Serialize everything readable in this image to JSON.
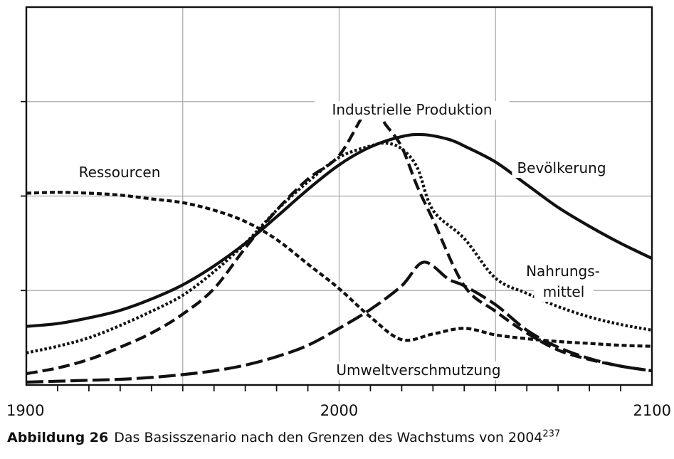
{
  "chart_data": {
    "type": "line",
    "title": "",
    "xlabel": "",
    "ylabel": "",
    "xlim": [
      1900,
      2100
    ],
    "ylim": [
      0,
      4
    ],
    "x_ticks": [
      1900,
      2000,
      2100
    ],
    "grid": true,
    "series": [
      {
        "name": "Bevölkerung",
        "style": "solid",
        "x": [
          1900,
          1910,
          1920,
          1930,
          1940,
          1950,
          1960,
          1970,
          1980,
          1990,
          2000,
          2010,
          2020,
          2027,
          2035,
          2040,
          2050,
          2060,
          2070,
          2080,
          2090,
          2100
        ],
        "y": [
          0.62,
          0.65,
          0.71,
          0.79,
          0.91,
          1.06,
          1.26,
          1.5,
          1.78,
          2.07,
          2.33,
          2.52,
          2.63,
          2.65,
          2.6,
          2.53,
          2.36,
          2.12,
          1.88,
          1.68,
          1.5,
          1.34
        ]
      },
      {
        "name": "Industrielle Produktion",
        "style": "dashed",
        "x": [
          1900,
          1910,
          1920,
          1930,
          1940,
          1950,
          1960,
          1970,
          1980,
          1990,
          2000,
          2010,
          2015,
          2020,
          2025,
          2030,
          2040,
          2050,
          2060,
          2070,
          2080,
          2090,
          2100
        ],
        "y": [
          0.12,
          0.18,
          0.27,
          0.4,
          0.55,
          0.75,
          1.02,
          1.45,
          1.85,
          2.18,
          2.43,
          2.95,
          2.75,
          2.52,
          2.1,
          1.75,
          1.05,
          0.78,
          0.55,
          0.37,
          0.27,
          0.2,
          0.15
        ]
      },
      {
        "name": "Nahrungsmittel",
        "style": "dotted",
        "x": [
          1900,
          1910,
          1920,
          1930,
          1940,
          1950,
          1960,
          1970,
          1980,
          1990,
          2000,
          2010,
          2015,
          2020,
          2025,
          2030,
          2040,
          2050,
          2060,
          2070,
          2080,
          2090,
          2100
        ],
        "y": [
          0.34,
          0.41,
          0.5,
          0.63,
          0.78,
          0.95,
          1.2,
          1.5,
          1.85,
          2.15,
          2.41,
          2.53,
          2.56,
          2.5,
          2.3,
          1.85,
          1.55,
          1.13,
          0.97,
          0.83,
          0.72,
          0.64,
          0.58
        ]
      },
      {
        "name": "Ressourcen",
        "style": "short-dashed",
        "x": [
          1900,
          1910,
          1920,
          1930,
          1940,
          1950,
          1960,
          1970,
          1980,
          1990,
          2000,
          2010,
          2020,
          2030,
          2040,
          2050,
          2060,
          2070,
          2080,
          2090,
          2100
        ],
        "y": [
          2.03,
          2.04,
          2.03,
          2.01,
          1.97,
          1.93,
          1.85,
          1.73,
          1.54,
          1.28,
          1.02,
          0.72,
          0.48,
          0.54,
          0.6,
          0.53,
          0.49,
          0.46,
          0.44,
          0.42,
          0.41
        ]
      },
      {
        "name": "Umweltverschmutzung",
        "style": "long-dashed",
        "x": [
          1900,
          1910,
          1920,
          1930,
          1940,
          1950,
          1960,
          1970,
          1980,
          1990,
          2000,
          2010,
          2020,
          2027,
          2035,
          2040,
          2050,
          2060,
          2070,
          2080,
          2090,
          2100
        ],
        "y": [
          0.03,
          0.04,
          0.05,
          0.06,
          0.08,
          0.11,
          0.15,
          0.21,
          0.3,
          0.42,
          0.6,
          0.8,
          1.05,
          1.3,
          1.12,
          1.05,
          0.85,
          0.58,
          0.4,
          0.28,
          0.2,
          0.15
        ]
      }
    ],
    "annotations": [
      "Industrielle Produktion",
      "Bevölkerung",
      "Ressourcen",
      "Nahrungs-",
      "mittel",
      "Umweltverschmutzung"
    ]
  },
  "caption": {
    "label": "Abbildung 26",
    "text": "Das Basisszenario nach den Grenzen des Wachstums von 2004",
    "superscript": "237"
  }
}
